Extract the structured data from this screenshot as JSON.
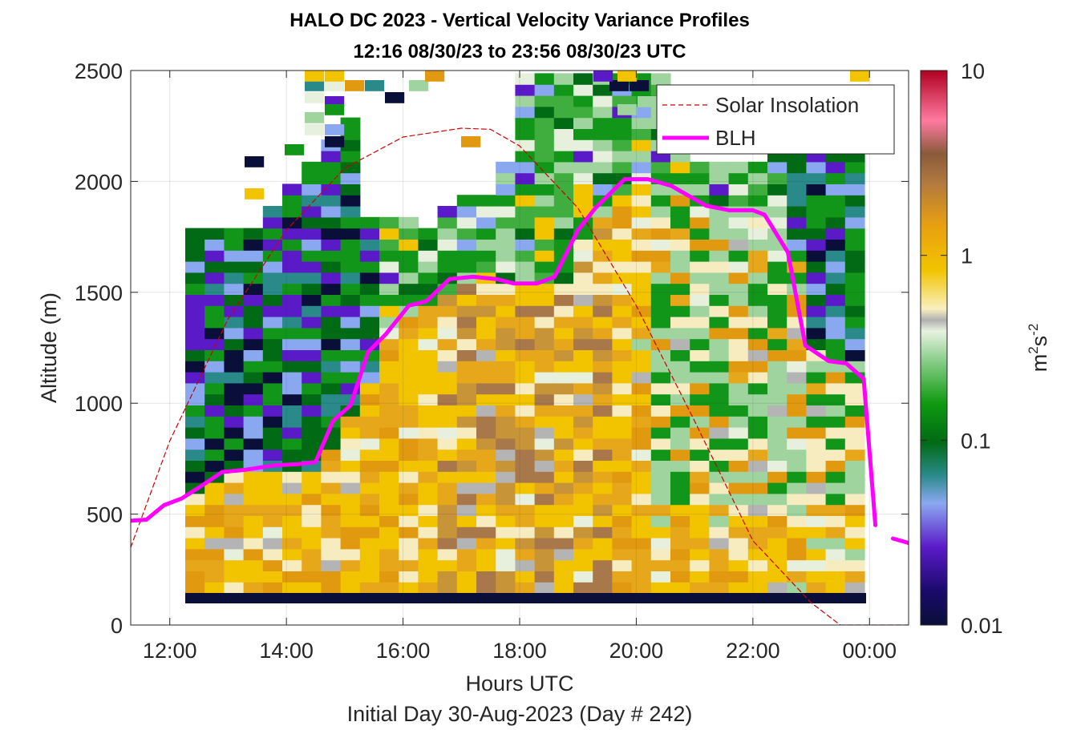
{
  "chart_data": {
    "type": "heatmap",
    "title": "HALO DC 2023 - Vertical Velocity Variance Profiles",
    "subtitle": "12:16 08/30/23 to 23:56 08/30/23  UTC",
    "xlabel": "Hours UTC",
    "footer": "Initial Day 30-Aug-2023 (Day # 242)",
    "ylabel": "Altitude (m)",
    "x_ticks": [
      "12:00",
      "14:00",
      "16:00",
      "18:00",
      "20:00",
      "22:00",
      "00:00"
    ],
    "x_tick_hours": [
      12,
      14,
      16,
      18,
      20,
      22,
      24
    ],
    "xlim": [
      11.33,
      24.67
    ],
    "y_ticks": [
      "0",
      "500",
      "1000",
      "1500",
      "2000",
      "2500"
    ],
    "y_tick_values": [
      0,
      500,
      1000,
      1500,
      2000,
      2500
    ],
    "ylim": [
      0,
      2500
    ],
    "grid": true,
    "legend_position": "top-right",
    "colorbar": {
      "label_base": "m",
      "label_exp1": "2",
      "label_mid": "s",
      "label_exp2": "-2",
      "ticks": [
        "10",
        "1",
        "0.1",
        "0.01"
      ],
      "tick_values": [
        10,
        1,
        0.1,
        0.01
      ],
      "scale": "log",
      "range": [
        0.01,
        10
      ]
    },
    "series": [
      {
        "name": "Solar Insolation",
        "style": "dashed",
        "color": "#cc0000",
        "x": [
          11.33,
          12,
          13,
          14,
          15,
          16,
          17,
          17.5,
          18,
          19,
          20,
          21,
          22,
          23,
          23.5,
          24,
          24.67
        ],
        "y": [
          350,
          830,
          1380,
          1780,
          2060,
          2200,
          2240,
          2235,
          2160,
          1880,
          1440,
          920,
          380,
          100,
          0,
          0,
          0
        ]
      },
      {
        "name": "BLH",
        "style": "solid",
        "color": "#ff00ff",
        "x": [
          11.33,
          11.6,
          11.9,
          12.2,
          12.5,
          12.9,
          13.3,
          13.8,
          14.2,
          14.5,
          14.8,
          15.1,
          15.4,
          15.7,
          16.1,
          16.4,
          16.8,
          17.2,
          17.6,
          17.9,
          18.3,
          18.6,
          19,
          19.3,
          19.8,
          20.2,
          20.6,
          21.2,
          21.6,
          22,
          22.2,
          22.6,
          22.9,
          23.3,
          23.6,
          23.9,
          24.1
        ],
        "y": [
          470,
          475,
          540,
          570,
          620,
          690,
          700,
          720,
          725,
          735,
          920,
          990,
          1230,
          1310,
          1440,
          1460,
          1560,
          1570,
          1560,
          1540,
          1540,
          1570,
          1780,
          1880,
          2010,
          2010,
          1980,
          1890,
          1870,
          1870,
          1850,
          1680,
          1260,
          1190,
          1180,
          1110,
          450
        ]
      },
      {
        "name": "",
        "style": "solid",
        "color": "#ff00ff",
        "x": [
          24.4,
          24.67
        ],
        "y": [
          390,
          370
        ]
      }
    ]
  }
}
